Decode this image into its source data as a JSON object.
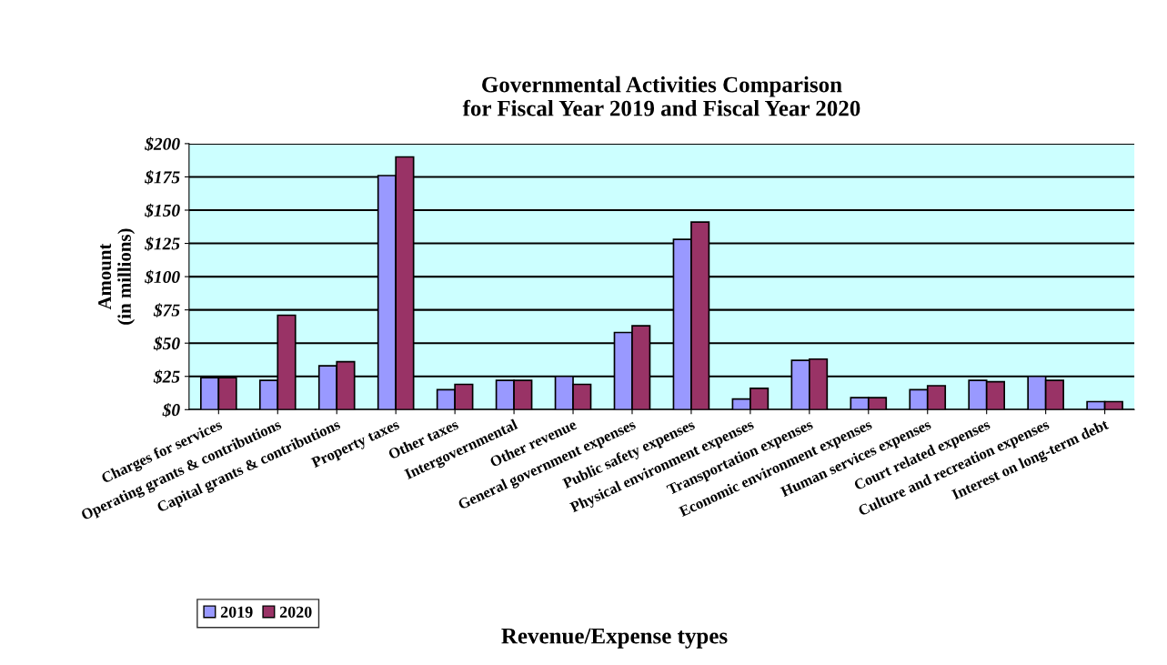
{
  "chart_data": {
    "type": "bar",
    "title": "Governmental Activities Comparison\nfor Fiscal Year 2019 and Fiscal Year 2020",
    "xlabel": "Revenue/Expense types",
    "ylabel": "Amount\n(in millions)",
    "categories": [
      "Charges for services",
      "Operating grants & contributions",
      "Capital grants & contributions",
      "Property taxes",
      "Other taxes",
      "Intergovernmental",
      "Other revenue",
      "General government expenses",
      "Public safety expenses",
      "Physical environment expenses",
      "Transportation expenses",
      "Economic environment expenses",
      "Human services expenses",
      "Court related expenses",
      "Culture and recreation expenses",
      "Interest on long-term debt"
    ],
    "series": [
      {
        "name": "2019",
        "color": "#9999ff",
        "values": [
          24,
          22,
          33,
          176,
          15,
          22,
          25,
          58,
          128,
          8,
          37,
          9,
          15,
          22,
          25,
          6
        ]
      },
      {
        "name": "2020",
        "color": "#993366",
        "values": [
          24,
          71,
          36,
          190,
          19,
          22,
          19,
          63,
          141,
          16,
          38,
          9,
          18,
          21,
          22,
          6
        ]
      }
    ],
    "ylim": [
      0,
      200
    ],
    "yticks": [
      {
        "value": 0,
        "label": "$0"
      },
      {
        "value": 25,
        "label": "$25"
      },
      {
        "value": 50,
        "label": "$50"
      },
      {
        "value": 75,
        "label": "$75"
      },
      {
        "value": 100,
        "label": "$100"
      },
      {
        "value": 125,
        "label": "$125"
      },
      {
        "value": 150,
        "label": "$150"
      },
      {
        "value": 175,
        "label": "$175"
      },
      {
        "value": 200,
        "label": "$200"
      }
    ],
    "grid": "y",
    "legend": "bottom left"
  }
}
